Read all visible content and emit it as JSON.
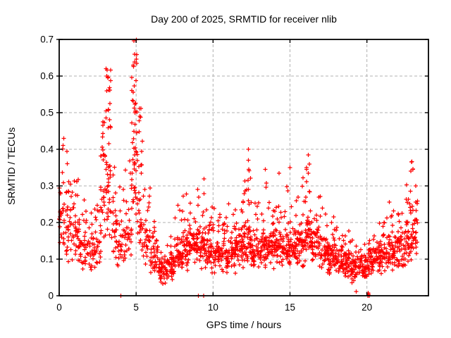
{
  "chart_data": {
    "type": "scatter",
    "title": "Day 200 of 2025, SRMTID for receiver nlib",
    "xlabel": "GPS time / hours",
    "ylabel": "SRMTID / TECUs",
    "xlim": [
      0,
      24
    ],
    "ylim": [
      0,
      0.7
    ],
    "xticks": {
      "values": [
        0,
        5,
        10,
        15,
        20
      ],
      "labels": [
        "0",
        "5",
        "10",
        "15",
        "20"
      ]
    },
    "yticks": {
      "values": [
        0,
        0.1,
        0.2,
        0.3,
        0.4,
        0.5,
        0.6,
        0.7
      ],
      "labels": [
        "0",
        "0.1",
        "0.2",
        "0.3",
        "0.4",
        "0.5",
        "0.6",
        "0.7"
      ]
    },
    "legend": "none",
    "grid": {
      "visible": true,
      "style": "dashed",
      "color": "#b0b0b0"
    },
    "marker": {
      "shape": "plus",
      "color": "#ff0000",
      "size": 7
    },
    "colors": {
      "border": "#000000",
      "background": "#ffffff",
      "text": "#000000"
    },
    "seed": 20250200,
    "point_clusters": [
      [
        0.0,
        0.3,
        25,
        0.1,
        0.33,
        0.43,
        0.25
      ],
      [
        0.3,
        0.8,
        40,
        0.09,
        0.3,
        0.4,
        0.2
      ],
      [
        0.8,
        1.3,
        35,
        0.08,
        0.24,
        0.33,
        0.15
      ],
      [
        1.3,
        1.8,
        35,
        0.06,
        0.2,
        0.27,
        0.12
      ],
      [
        1.8,
        2.3,
        32,
        0.05,
        0.18,
        0.25,
        0.12
      ],
      [
        2.3,
        2.7,
        28,
        0.06,
        0.2,
        0.3,
        0.15
      ],
      [
        2.7,
        3.0,
        30,
        0.1,
        0.38,
        0.48,
        0.3
      ],
      [
        3.0,
        3.35,
        45,
        0.15,
        0.45,
        0.62,
        0.35
      ],
      [
        3.35,
        3.8,
        28,
        0.08,
        0.25,
        0.38,
        0.2
      ],
      [
        3.8,
        4.3,
        28,
        0.06,
        0.22,
        0.3,
        0.15
      ],
      [
        4.3,
        4.7,
        26,
        0.08,
        0.25,
        0.42,
        0.25
      ],
      [
        4.7,
        5.05,
        50,
        0.15,
        0.5,
        0.7,
        0.4
      ],
      [
        5.05,
        5.4,
        35,
        0.1,
        0.35,
        0.52,
        0.25
      ],
      [
        5.4,
        5.9,
        32,
        0.08,
        0.22,
        0.3,
        0.15
      ],
      [
        5.9,
        6.4,
        38,
        0.05,
        0.16,
        0.22,
        0.1
      ],
      [
        6.4,
        7.0,
        45,
        0.03,
        0.11,
        0.16,
        0.1
      ],
      [
        7.0,
        7.5,
        45,
        0.03,
        0.13,
        0.18,
        0.1
      ],
      [
        7.5,
        8.0,
        45,
        0.05,
        0.17,
        0.25,
        0.12
      ],
      [
        8.0,
        8.5,
        45,
        0.06,
        0.19,
        0.28,
        0.12
      ],
      [
        8.5,
        9.0,
        45,
        0.07,
        0.2,
        0.3,
        0.12
      ],
      [
        9.0,
        9.5,
        45,
        0.07,
        0.21,
        0.32,
        0.12
      ],
      [
        9.5,
        10.0,
        45,
        0.06,
        0.18,
        0.26,
        0.12
      ],
      [
        10.0,
        10.5,
        45,
        0.05,
        0.17,
        0.24,
        0.1
      ],
      [
        10.5,
        11.0,
        45,
        0.04,
        0.17,
        0.23,
        0.1
      ],
      [
        11.0,
        11.5,
        45,
        0.06,
        0.18,
        0.26,
        0.12
      ],
      [
        11.5,
        12.0,
        45,
        0.07,
        0.2,
        0.28,
        0.12
      ],
      [
        12.0,
        12.45,
        48,
        0.08,
        0.22,
        0.4,
        0.18
      ],
      [
        12.45,
        13.0,
        45,
        0.05,
        0.19,
        0.3,
        0.12
      ],
      [
        13.0,
        13.5,
        45,
        0.07,
        0.2,
        0.35,
        0.12
      ],
      [
        13.5,
        14.0,
        45,
        0.07,
        0.19,
        0.28,
        0.12
      ],
      [
        14.0,
        14.5,
        45,
        0.07,
        0.2,
        0.3,
        0.12
      ],
      [
        14.5,
        15.0,
        45,
        0.06,
        0.19,
        0.35,
        0.12
      ],
      [
        15.0,
        15.5,
        45,
        0.07,
        0.2,
        0.3,
        0.12
      ],
      [
        15.5,
        16.0,
        45,
        0.07,
        0.21,
        0.34,
        0.12
      ],
      [
        16.0,
        16.45,
        45,
        0.09,
        0.24,
        0.39,
        0.2
      ],
      [
        16.45,
        17.0,
        45,
        0.07,
        0.2,
        0.3,
        0.12
      ],
      [
        17.0,
        17.5,
        45,
        0.06,
        0.18,
        0.25,
        0.1
      ],
      [
        17.5,
        18.0,
        45,
        0.05,
        0.16,
        0.22,
        0.1
      ],
      [
        18.0,
        18.5,
        45,
        0.05,
        0.15,
        0.2,
        0.1
      ],
      [
        18.5,
        19.0,
        45,
        0.04,
        0.14,
        0.18,
        0.1
      ],
      [
        19.0,
        19.5,
        45,
        0.03,
        0.13,
        0.16,
        0.1
      ],
      [
        19.5,
        20.0,
        45,
        0.03,
        0.12,
        0.15,
        0.1
      ],
      [
        20.0,
        20.5,
        40,
        0.04,
        0.14,
        0.18,
        0.1
      ],
      [
        20.5,
        21.0,
        40,
        0.05,
        0.16,
        0.2,
        0.1
      ],
      [
        21.0,
        21.5,
        40,
        0.06,
        0.18,
        0.28,
        0.15
      ],
      [
        21.5,
        22.0,
        40,
        0.06,
        0.18,
        0.25,
        0.12
      ],
      [
        22.0,
        22.5,
        40,
        0.07,
        0.2,
        0.3,
        0.15
      ],
      [
        22.5,
        23.0,
        45,
        0.08,
        0.24,
        0.37,
        0.25
      ],
      [
        23.0,
        23.3,
        25,
        0.1,
        0.25,
        0.33,
        0.2
      ]
    ],
    "extra_points": [
      [
        4.85,
        0.696
      ],
      [
        4.9,
        0.66
      ],
      [
        4.82,
        0.63
      ],
      [
        3.05,
        0.62
      ],
      [
        3.1,
        0.6
      ],
      [
        3.15,
        0.595
      ],
      [
        0.3,
        0.43
      ],
      [
        12.3,
        0.4
      ],
      [
        12.3,
        0.37
      ],
      [
        12.32,
        0.345
      ],
      [
        12.28,
        0.315
      ],
      [
        12.3,
        0.29
      ],
      [
        13.4,
        0.345
      ],
      [
        14.3,
        0.335
      ],
      [
        15.0,
        0.35
      ],
      [
        16.2,
        0.385
      ],
      [
        16.25,
        0.36
      ],
      [
        16.18,
        0.335
      ],
      [
        22.9,
        0.365
      ],
      [
        22.85,
        0.34
      ],
      [
        4.0,
        0.0
      ],
      [
        9.05,
        0.0
      ],
      [
        9.4,
        0.0
      ],
      [
        19.3,
        0.012
      ],
      [
        20.05,
        0.0
      ],
      [
        20.1,
        0.004
      ],
      [
        20.15,
        0.0
      ],
      [
        20.08,
        0.008
      ]
    ]
  }
}
